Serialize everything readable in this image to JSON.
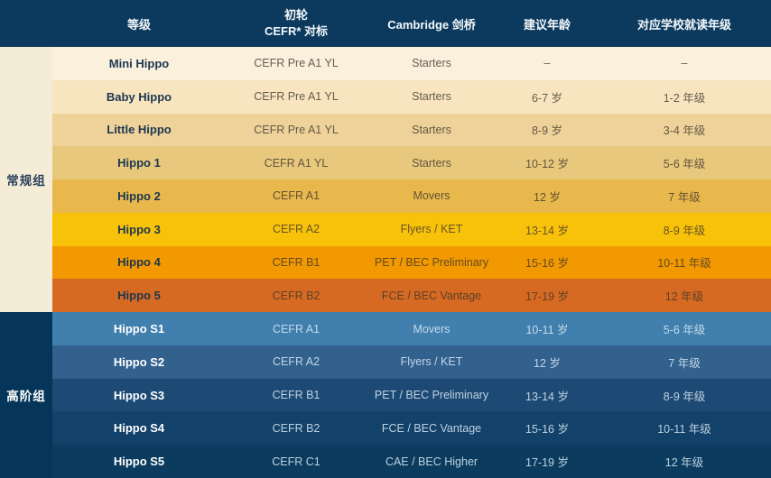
{
  "colors": {
    "header_bg": "#0b3a5e",
    "sidebar_regular_bg": "#f5ecd8",
    "sidebar_regular_text": "#29405a",
    "sidebar_advanced_bg": "#05365a",
    "sidebar_advanced_text": "#ffffff",
    "header_text": "#f3f7fa"
  },
  "header": {
    "level": "等级",
    "cefr_line1": "初轮",
    "cefr_line2": "CEFR* 对标",
    "cambridge": "Cambridge 剑桥",
    "age": "建议年龄",
    "grade": "对应学校就读年级"
  },
  "sidebar": {
    "regular_label": "常规组",
    "advanced_label": "高阶组"
  },
  "chart_data": {
    "type": "table",
    "columns": [
      "等级",
      "初轮 CEFR* 对标",
      "Cambridge 剑桥",
      "建议年龄",
      "对应学校就读年级"
    ],
    "row_groups": [
      {
        "label": "常规组",
        "row_count": 8
      },
      {
        "label": "高阶组",
        "row_count": 5
      }
    ],
    "rows": [
      {
        "level": "Mini Hippo",
        "cefr": "CEFR Pre A1 YL",
        "cambridge": "Starters",
        "age": "–",
        "grade": "–",
        "bg": "#faf0dc",
        "theme": "warm"
      },
      {
        "level": "Baby Hippo",
        "cefr": "CEFR Pre A1 YL",
        "cambridge": "Starters",
        "age": "6-7 岁",
        "grade": "1-2 年级",
        "bg": "#f8e5c0",
        "theme": "warm"
      },
      {
        "level": "Little Hippo",
        "cefr": "CEFR Pre A1 YL",
        "cambridge": "Starters",
        "age": "8-9 岁",
        "grade": "3-4 年级",
        "bg": "#eed29a",
        "theme": "warm"
      },
      {
        "level": "Hippo 1",
        "cefr": "CEFR A1 YL",
        "cambridge": "Starters",
        "age": "10-12 岁",
        "grade": "5-6 年级",
        "bg": "#e8c87d",
        "theme": "warm"
      },
      {
        "level": "Hippo 2",
        "cefr": "CEFR A1",
        "cambridge": "Movers",
        "age": "12 岁",
        "grade": "7 年级",
        "bg": "#e9b84d",
        "theme": "warm"
      },
      {
        "level": "Hippo 3",
        "cefr": "CEFR A2",
        "cambridge": "Flyers / KET",
        "age": "13-14 岁",
        "grade": "8-9 年级",
        "bg": "#f9c20a",
        "theme": "warm"
      },
      {
        "level": "Hippo 4",
        "cefr": "CEFR B1",
        "cambridge": "PET / BEC Preliminary",
        "age": "15-16 岁",
        "grade": "10-11 年级",
        "bg": "#f29800",
        "theme": "warm"
      },
      {
        "level": "Hippo 5",
        "cefr": "CEFR B2",
        "cambridge": "FCE / BEC Vantage",
        "age": "17-19 岁",
        "grade": "12 年级",
        "bg": "#d66a22",
        "theme": "warm"
      },
      {
        "level": "Hippo S1",
        "cefr": "CEFR A1",
        "cambridge": "Movers",
        "age": "10-11 岁",
        "grade": "5-6 年级",
        "bg": "#417fae",
        "theme": "cool"
      },
      {
        "level": "Hippo S2",
        "cefr": "CEFR A2",
        "cambridge": "Flyers / KET",
        "age": "12 岁",
        "grade": "7 年级",
        "bg": "#32618e",
        "theme": "cool"
      },
      {
        "level": "Hippo S3",
        "cefr": "CEFR B1",
        "cambridge": "PET / BEC Preliminary",
        "age": "13-14 岁",
        "grade": "8-9 年级",
        "bg": "#1d4a75",
        "theme": "cool"
      },
      {
        "level": "Hippo S4",
        "cefr": "CEFR B2",
        "cambridge": "FCE / BEC Vantage",
        "age": "15-16 岁",
        "grade": "10-11 年级",
        "bg": "#12416a",
        "theme": "cool"
      },
      {
        "level": "Hippo S5",
        "cefr": "CEFR C1",
        "cambridge": "CAE / BEC Higher",
        "age": "17-19 岁",
        "grade": "12 年级",
        "bg": "#0b3c60",
        "theme": "cool"
      }
    ]
  }
}
